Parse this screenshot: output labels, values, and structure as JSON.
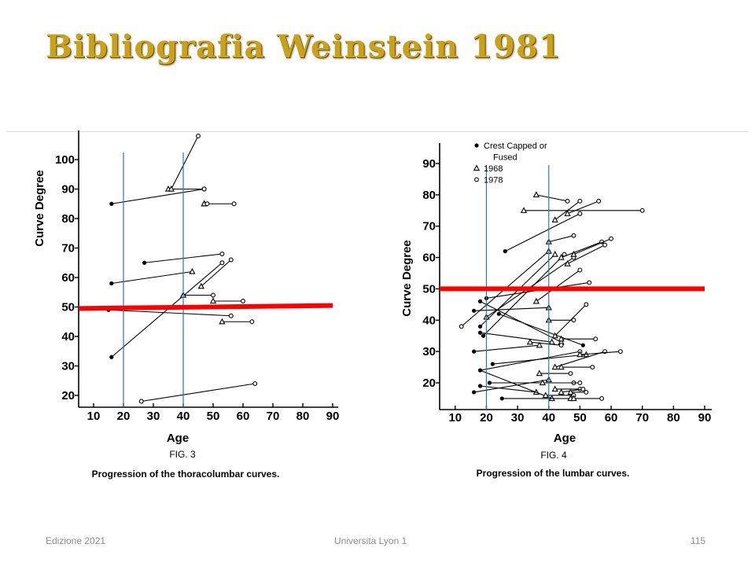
{
  "slide": {
    "title": "Bibliografia Weinstein 1981",
    "footer_left": "Edizione 2021",
    "footer_center": "Universita Lyon 1",
    "footer_right": "115"
  },
  "colors": {
    "title": "#c9a21a",
    "marker_line": "#ff0000",
    "guide_line": "#2e75b6",
    "ink": "#000000"
  },
  "chart_data": [
    {
      "type": "line",
      "caption": "FIG. 3",
      "title": "Progression of the thoracolumbar curves.",
      "xlabel": "Age",
      "ylabel": "Curve Degree",
      "xlim": [
        5,
        90
      ],
      "ylim": [
        15,
        110
      ],
      "x_ticks": [
        10,
        20,
        30,
        40,
        50,
        60,
        70,
        80,
        90
      ],
      "y_ticks": [
        20,
        30,
        40,
        50,
        60,
        70,
        80,
        90,
        100
      ],
      "legend": null,
      "reference_lines": {
        "horizontal_red": [
          [
            5,
            49.5
          ],
          [
            90,
            50.5
          ]
        ],
        "vertical_blue_x": [
          20,
          40
        ]
      },
      "segments": [
        {
          "x": [
            26,
            64
          ],
          "y": [
            18,
            24
          ],
          "m": [
            "o",
            "o"
          ]
        },
        {
          "x": [
            16,
            53
          ],
          "y": [
            33,
            65
          ],
          "m": [
            "f",
            "o"
          ]
        },
        {
          "x": [
            15,
            56
          ],
          "y": [
            49,
            47
          ],
          "m": [
            "f",
            "o"
          ]
        },
        {
          "x": [
            16,
            43
          ],
          "y": [
            58,
            62
          ],
          "m": [
            "f",
            "t"
          ]
        },
        {
          "x": [
            27,
            53
          ],
          "y": [
            65,
            68
          ],
          "m": [
            "f",
            "o"
          ]
        },
        {
          "x": [
            40,
            50
          ],
          "y": [
            54,
            54
          ],
          "m": [
            "t",
            "o"
          ]
        },
        {
          "x": [
            46,
            56
          ],
          "y": [
            57,
            66
          ],
          "m": [
            "t",
            "o"
          ]
        },
        {
          "x": [
            50,
            60
          ],
          "y": [
            52,
            52
          ],
          "m": [
            "t",
            "o"
          ]
        },
        {
          "x": [
            53,
            63
          ],
          "y": [
            45,
            45
          ],
          "m": [
            "t",
            "o"
          ]
        },
        {
          "x": [
            16,
            47
          ],
          "y": [
            85,
            90
          ],
          "m": [
            "f",
            "o"
          ]
        },
        {
          "x": [
            35,
            47
          ],
          "y": [
            90,
            90
          ],
          "m": [
            "t",
            "o"
          ]
        },
        {
          "x": [
            36,
            45
          ],
          "y": [
            90,
            108
          ],
          "m": [
            "t",
            "o"
          ]
        },
        {
          "x": [
            47,
            57
          ],
          "y": [
            85,
            85
          ],
          "m": [
            "t",
            "o"
          ]
        },
        {
          "x": [
            47,
            48
          ],
          "y": [
            85,
            85
          ],
          "m": [
            "t",
            "o"
          ]
        }
      ]
    },
    {
      "type": "line",
      "caption": "FIG. 4",
      "title": "Progression of the lumbar curves.",
      "xlabel": "Age",
      "ylabel": "Curve Degree",
      "xlim": [
        5,
        90
      ],
      "ylim": [
        10,
        95
      ],
      "x_ticks": [
        10,
        20,
        30,
        40,
        50,
        60,
        70,
        80,
        90
      ],
      "y_ticks": [
        20,
        30,
        40,
        50,
        60,
        70,
        80,
        90
      ],
      "legend": {
        "entries": [
          {
            "marker": "f",
            "label": "Crest Capped or"
          },
          {
            "marker": "",
            "label": "Fused"
          },
          {
            "marker": "t",
            "label": "1968"
          },
          {
            "marker": "o",
            "label": "1978"
          }
        ]
      },
      "reference_lines": {
        "horizontal_red": [
          [
            5,
            50
          ],
          [
            90,
            50
          ]
        ],
        "vertical_blue_x": [
          20,
          40
        ]
      },
      "segments": [
        {
          "x": [
            36,
            46
          ],
          "y": [
            80,
            78
          ],
          "m": [
            "t",
            "o"
          ]
        },
        {
          "x": [
            32,
            70
          ],
          "y": [
            75,
            75
          ],
          "m": [
            "t",
            "o"
          ]
        },
        {
          "x": [
            42,
            50
          ],
          "y": [
            72,
            78
          ],
          "m": [
            "t",
            "o"
          ]
        },
        {
          "x": [
            46,
            56
          ],
          "y": [
            74,
            78
          ],
          "m": [
            "t",
            "o"
          ]
        },
        {
          "x": [
            26,
            50
          ],
          "y": [
            62,
            74
          ],
          "m": [
            "f",
            "o"
          ]
        },
        {
          "x": [
            40,
            48
          ],
          "y": [
            65,
            67
          ],
          "m": [
            "t",
            "o"
          ]
        },
        {
          "x": [
            18,
            42
          ],
          "y": [
            38,
            61
          ],
          "m": [
            "f",
            "t"
          ]
        },
        {
          "x": [
            19,
            45
          ],
          "y": [
            35,
            61
          ],
          "m": [
            "f",
            "o"
          ]
        },
        {
          "x": [
            12,
            40
          ],
          "y": [
            38,
            62
          ],
          "m": [
            "o",
            "t"
          ]
        },
        {
          "x": [
            20,
            48
          ],
          "y": [
            41,
            60
          ],
          "m": [
            "t",
            "o"
          ]
        },
        {
          "x": [
            44,
            57
          ],
          "y": [
            60,
            65
          ],
          "m": [
            "t",
            "o"
          ]
        },
        {
          "x": [
            48,
            60
          ],
          "y": [
            61,
            66
          ],
          "m": [
            "t",
            "o"
          ]
        },
        {
          "x": [
            46,
            58
          ],
          "y": [
            58,
            64
          ],
          "m": [
            "t",
            "o"
          ]
        },
        {
          "x": [
            36,
            50
          ],
          "y": [
            46,
            56
          ],
          "m": [
            "t",
            "o"
          ]
        },
        {
          "x": [
            20,
            53
          ],
          "y": [
            47,
            52
          ],
          "m": [
            "f",
            "o"
          ]
        },
        {
          "x": [
            16,
            40
          ],
          "y": [
            43,
            44
          ],
          "m": [
            "f",
            "t"
          ]
        },
        {
          "x": [
            18,
            44
          ],
          "y": [
            46,
            33
          ],
          "m": [
            "f",
            "t"
          ]
        },
        {
          "x": [
            24,
            51
          ],
          "y": [
            42,
            32
          ],
          "m": [
            "f",
            "f"
          ]
        },
        {
          "x": [
            40,
            48
          ],
          "y": [
            40,
            40
          ],
          "m": [
            "t",
            "o"
          ]
        },
        {
          "x": [
            42,
            52
          ],
          "y": [
            35,
            45
          ],
          "m": [
            "t",
            "o"
          ]
        },
        {
          "x": [
            44,
            55
          ],
          "y": [
            34,
            34
          ],
          "m": [
            "t",
            "o"
          ]
        },
        {
          "x": [
            18,
            41
          ],
          "y": [
            36,
            33
          ],
          "m": [
            "f",
            "t"
          ]
        },
        {
          "x": [
            34,
            44
          ],
          "y": [
            33,
            32
          ],
          "m": [
            "t",
            "o"
          ]
        },
        {
          "x": [
            16,
            37
          ],
          "y": [
            30,
            32
          ],
          "m": [
            "f",
            "t"
          ]
        },
        {
          "x": [
            18,
            50
          ],
          "y": [
            24,
            30
          ],
          "m": [
            "f",
            "o"
          ]
        },
        {
          "x": [
            22,
            52
          ],
          "y": [
            26,
            29
          ],
          "m": [
            "f",
            "t"
          ]
        },
        {
          "x": [
            42,
            58
          ],
          "y": [
            25,
            30
          ],
          "m": [
            "t",
            "o"
          ]
        },
        {
          "x": [
            50,
            63
          ],
          "y": [
            29,
            30
          ],
          "m": [
            "t",
            "o"
          ]
        },
        {
          "x": [
            44,
            54
          ],
          "y": [
            25,
            25
          ],
          "m": [
            "t",
            "o"
          ]
        },
        {
          "x": [
            37,
            47
          ],
          "y": [
            23,
            23
          ],
          "m": [
            "t",
            "o"
          ]
        },
        {
          "x": [
            18,
            36
          ],
          "y": [
            19,
            17
          ],
          "m": [
            "f",
            "t"
          ]
        },
        {
          "x": [
            21,
            48
          ],
          "y": [
            20,
            20
          ],
          "m": [
            "f",
            "o"
          ]
        },
        {
          "x": [
            18,
            41
          ],
          "y": [
            24,
            15
          ],
          "m": [
            "f",
            "t"
          ]
        },
        {
          "x": [
            16,
            40
          ],
          "y": [
            17,
            21
          ],
          "m": [
            "f",
            "t"
          ]
        },
        {
          "x": [
            38,
            50
          ],
          "y": [
            20,
            20
          ],
          "m": [
            "t",
            "o"
          ]
        },
        {
          "x": [
            42,
            50
          ],
          "y": [
            18,
            18
          ],
          "m": [
            "t",
            "o"
          ]
        },
        {
          "x": [
            44,
            51
          ],
          "y": [
            17,
            18
          ],
          "m": [
            "t",
            "o"
          ]
        },
        {
          "x": [
            47,
            52
          ],
          "y": [
            17,
            17
          ],
          "m": [
            "t",
            "o"
          ]
        },
        {
          "x": [
            25,
            47
          ],
          "y": [
            15,
            15
          ],
          "m": [
            "f",
            "t"
          ]
        },
        {
          "x": [
            39,
            48
          ],
          "y": [
            16,
            16
          ],
          "m": [
            "t",
            "o"
          ]
        },
        {
          "x": [
            48,
            57
          ],
          "y": [
            15,
            15
          ],
          "m": [
            "t",
            "o"
          ]
        }
      ]
    }
  ]
}
